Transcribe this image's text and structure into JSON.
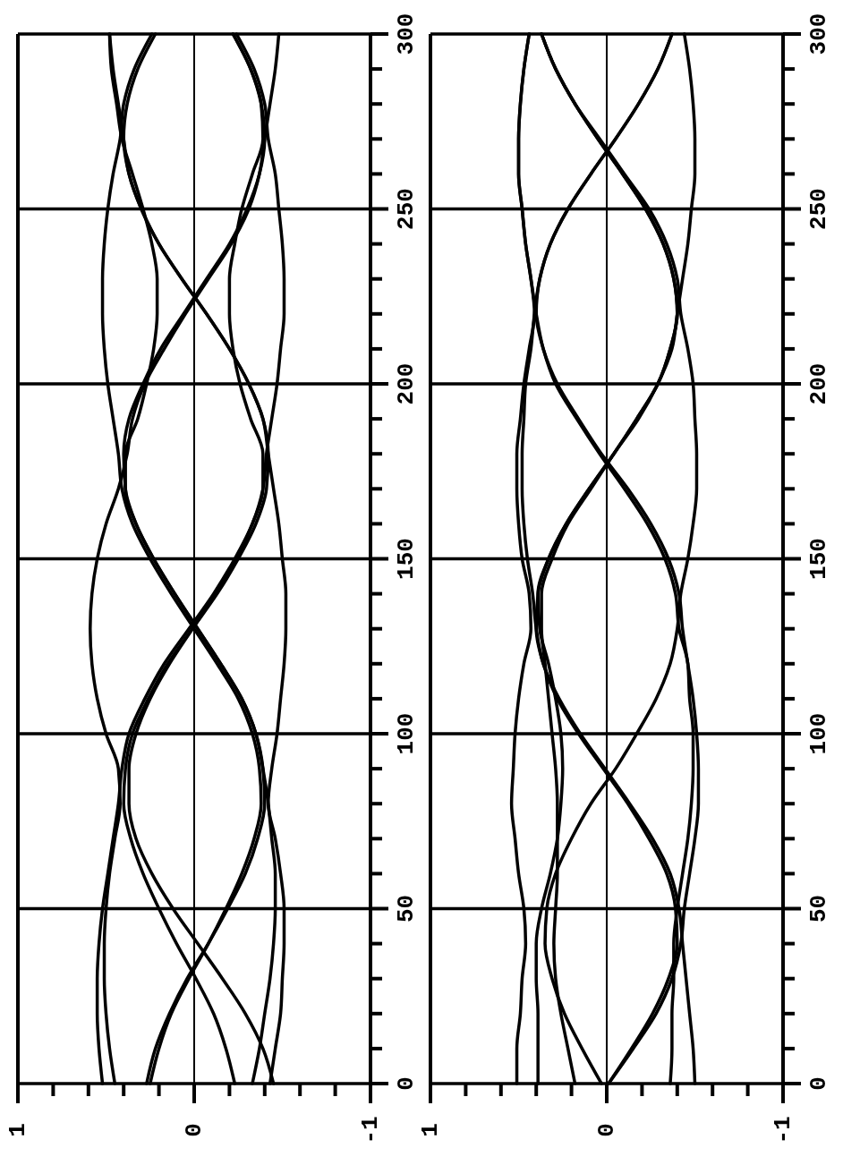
{
  "chart_data": [
    {
      "type": "line",
      "xlim": [
        1,
        -1
      ],
      "ylim": [
        0,
        300
      ],
      "yticks": [
        0,
        {
          "value": 10,
          "label": null
        },
        {
          "value": 20,
          "label": null
        },
        {
          "value": 30,
          "label": null
        },
        {
          "value": 40,
          "label": null
        },
        50,
        {
          "value": 60,
          "label": null
        },
        {
          "value": 70,
          "label": null
        },
        {
          "value": 80,
          "label": null
        },
        {
          "value": 90,
          "label": null
        },
        100,
        {
          "value": 110,
          "label": null
        },
        {
          "value": 120,
          "label": null
        },
        {
          "value": 130,
          "label": null
        },
        {
          "value": 140,
          "label": null
        },
        150,
        {
          "value": 160,
          "label": null
        },
        {
          "value": 170,
          "label": null
        },
        {
          "value": 180,
          "label": null
        },
        {
          "value": 190,
          "label": null
        },
        200,
        {
          "value": 210,
          "label": null
        },
        {
          "value": 220,
          "label": null
        },
        {
          "value": 230,
          "label": null
        },
        {
          "value": 240,
          "label": null
        },
        250,
        {
          "value": 260,
          "label": null
        },
        {
          "value": 270,
          "label": null
        },
        {
          "value": 280,
          "label": null
        },
        {
          "value": 290,
          "label": null
        },
        300
      ],
      "xticks": [
        1,
        {
          "value": 0.8,
          "label": null
        },
        {
          "value": 0.6,
          "label": null
        },
        {
          "value": 0.4,
          "label": null
        },
        {
          "value": 0.2,
          "label": null
        },
        0,
        {
          "value": -0.2,
          "label": null
        },
        {
          "value": -0.4,
          "label": null
        },
        {
          "value": -0.6,
          "label": null
        },
        {
          "value": -0.8,
          "label": null
        },
        -1
      ],
      "grid": true,
      "series": [
        {
          "color": "#000000",
          "values": [
            0,
            10,
            20,
            30,
            40,
            50,
            60,
            70,
            80,
            90,
            100,
            110,
            120,
            130,
            140,
            150,
            160,
            170,
            180,
            190,
            200,
            210,
            220,
            230,
            240,
            250,
            260,
            270,
            280,
            290,
            300
          ],
          "x": [
            0.27,
            0.22,
            0.14,
            0.04,
            -0.08,
            -0.19,
            -0.29,
            -0.36,
            -0.4,
            -0.39,
            -0.35,
            -0.27,
            -0.15,
            -0.02,
            0.11,
            0.23,
            0.33,
            0.39,
            0.4,
            0.37,
            0.29,
            0.19,
            0.06,
            -0.07,
            -0.2,
            -0.3,
            -0.37,
            -0.4,
            -0.38,
            -0.32,
            -0.22
          ]
        },
        {
          "color": "#000000",
          "values": [
            0,
            10,
            20,
            30,
            40,
            50,
            60,
            70,
            80,
            90,
            100,
            110,
            120,
            130,
            140,
            150,
            160,
            170,
            180,
            190,
            200,
            210,
            220,
            230,
            240,
            250,
            260,
            270,
            280,
            290,
            300
          ],
          "x": [
            0.25,
            0.2,
            0.13,
            0.03,
            -0.08,
            -0.18,
            -0.27,
            -0.34,
            -0.38,
            -0.37,
            -0.33,
            -0.25,
            -0.13,
            0.0,
            0.13,
            0.25,
            0.35,
            0.41,
            0.43,
            0.46,
            0.49,
            0.51,
            0.52,
            0.52,
            0.51,
            0.49,
            0.46,
            0.42,
            0.4,
            0.34,
            0.24
          ]
        },
        {
          "color": "#000000",
          "values": [
            0,
            10,
            20,
            30,
            40,
            50,
            60,
            70,
            80,
            90,
            100,
            110,
            120,
            130,
            140,
            150,
            160,
            170,
            180,
            190,
            200,
            210,
            220,
            230,
            240,
            250,
            260,
            270,
            280,
            290,
            300
          ],
          "x": [
            -0.23,
            -0.18,
            -0.11,
            -0.01,
            0.1,
            0.2,
            0.29,
            0.36,
            0.4,
            0.39,
            0.35,
            0.26,
            0.15,
            0.01,
            -0.13,
            -0.25,
            -0.35,
            -0.41,
            -0.42,
            -0.39,
            -0.31,
            -0.2,
            -0.07,
            0.07,
            0.2,
            0.3,
            0.37,
            0.4,
            0.38,
            0.32,
            0.22
          ]
        },
        {
          "color": "#000000",
          "values": [
            0,
            10,
            20,
            30,
            40,
            50,
            60,
            70,
            80,
            90,
            100,
            110,
            120,
            130,
            140,
            150,
            160,
            170,
            180,
            190,
            200,
            210,
            220,
            230,
            240,
            250,
            260,
            270,
            280,
            290,
            300
          ],
          "x": [
            0.52,
            0.54,
            0.55,
            0.55,
            0.54,
            0.52,
            0.49,
            0.46,
            0.43,
            0.41,
            0.37,
            0.28,
            0.17,
            0.03,
            -0.11,
            -0.23,
            -0.33,
            -0.39,
            -0.41,
            -0.44,
            -0.47,
            -0.49,
            -0.51,
            -0.51,
            -0.5,
            -0.48,
            -0.46,
            -0.42,
            -0.4,
            -0.34,
            -0.24
          ]
        },
        {
          "color": "#000000",
          "values": [
            0,
            10,
            20,
            30,
            40,
            50,
            60,
            70,
            80,
            90,
            100,
            110,
            120,
            130,
            140,
            150,
            160,
            170,
            180,
            190,
            200,
            210,
            220,
            230,
            240,
            250,
            260,
            270,
            280,
            290,
            300
          ],
          "x": [
            0.45,
            0.48,
            0.5,
            0.51,
            0.51,
            0.5,
            0.48,
            0.45,
            0.42,
            0.43,
            0.5,
            0.55,
            0.58,
            0.59,
            0.58,
            0.55,
            0.5,
            0.43,
            0.38,
            0.35,
            0.28,
            0.17,
            0.05,
            -0.08,
            -0.21,
            -0.31,
            -0.37,
            -0.4,
            -0.43,
            -0.46,
            -0.48
          ]
        },
        {
          "color": "#000000",
          "values": [
            0,
            10,
            20,
            30,
            40,
            50,
            60,
            70,
            80,
            90,
            100,
            110,
            120,
            130,
            140,
            150,
            160,
            170,
            180,
            190,
            200,
            210,
            220,
            230,
            240,
            250,
            260,
            270,
            280,
            290,
            300
          ],
          "x": [
            -0.33,
            -0.37,
            -0.4,
            -0.43,
            -0.45,
            -0.46,
            -0.46,
            -0.44,
            -0.42,
            -0.39,
            -0.35,
            -0.27,
            -0.15,
            -0.02,
            0.11,
            0.23,
            0.33,
            0.39,
            0.39,
            0.32,
            0.27,
            0.23,
            0.21,
            0.21,
            0.24,
            0.29,
            0.35,
            0.41,
            0.44,
            0.47,
            0.48
          ]
        },
        {
          "color": "#000000",
          "values": [
            0,
            10,
            20,
            30,
            40,
            50,
            60,
            70,
            80,
            90,
            100,
            110,
            120,
            130,
            140,
            150,
            160,
            170,
            180,
            190,
            200,
            210,
            220,
            230,
            240,
            250,
            260,
            270,
            280,
            290,
            300
          ],
          "x": [
            -0.43,
            -0.46,
            -0.49,
            -0.5,
            -0.51,
            -0.51,
            -0.49,
            -0.46,
            -0.42,
            -0.44,
            -0.47,
            -0.49,
            -0.51,
            -0.52,
            -0.52,
            -0.5,
            -0.48,
            -0.45,
            -0.42,
            -0.39,
            -0.31,
            -0.2,
            -0.07,
            0.07,
            0.2,
            0.3,
            0.37,
            0.4,
            0.43,
            0.46,
            0.48
          ]
        },
        {
          "color": "#000000",
          "values": [
            0,
            10,
            20,
            30,
            40,
            50,
            60,
            70,
            80,
            90,
            100,
            110,
            120,
            130,
            140,
            150,
            160,
            170,
            180,
            190,
            200,
            210,
            220,
            230,
            240,
            250,
            260,
            270,
            280,
            290,
            300
          ],
          "x": [
            -0.45,
            -0.39,
            -0.29,
            -0.16,
            -0.02,
            0.12,
            0.24,
            0.33,
            0.37,
            0.37,
            0.33,
            0.25,
            0.14,
            0.01,
            -0.12,
            -0.24,
            -0.33,
            -0.39,
            -0.39,
            -0.32,
            -0.26,
            -0.22,
            -0.2,
            -0.2,
            -0.23,
            -0.27,
            -0.33,
            -0.39,
            -0.38,
            -0.32,
            -0.22
          ]
        }
      ]
    },
    {
      "type": "line",
      "xlim": [
        1,
        -1
      ],
      "ylim": [
        0,
        300
      ],
      "yticks": [
        0,
        {
          "value": 10,
          "label": null
        },
        {
          "value": 20,
          "label": null
        },
        {
          "value": 30,
          "label": null
        },
        {
          "value": 40,
          "label": null
        },
        50,
        {
          "value": 60,
          "label": null
        },
        {
          "value": 70,
          "label": null
        },
        {
          "value": 80,
          "label": null
        },
        {
          "value": 90,
          "label": null
        },
        100,
        {
          "value": 110,
          "label": null
        },
        {
          "value": 120,
          "label": null
        },
        {
          "value": 130,
          "label": null
        },
        {
          "value": 140,
          "label": null
        },
        150,
        {
          "value": 160,
          "label": null
        },
        {
          "value": 170,
          "label": null
        },
        {
          "value": 180,
          "label": null
        },
        {
          "value": 190,
          "label": null
        },
        200,
        {
          "value": 210,
          "label": null
        },
        {
          "value": 220,
          "label": null
        },
        {
          "value": 230,
          "label": null
        },
        {
          "value": 240,
          "label": null
        },
        250,
        {
          "value": 260,
          "label": null
        },
        {
          "value": 270,
          "label": null
        },
        {
          "value": 280,
          "label": null
        },
        {
          "value": 290,
          "label": null
        },
        300
      ],
      "xticks": [
        1,
        {
          "value": 0.8,
          "label": null
        },
        {
          "value": 0.6,
          "label": null
        },
        {
          "value": 0.4,
          "label": null
        },
        {
          "value": 0.2,
          "label": null
        },
        0,
        {
          "value": -0.2,
          "label": null
        },
        {
          "value": -0.4,
          "label": null
        },
        {
          "value": -0.6,
          "label": null
        },
        {
          "value": -0.8,
          "label": null
        },
        -1
      ],
      "grid": true,
      "series": [
        {
          "color": "#000000",
          "values": [
            0,
            10,
            20,
            30,
            40,
            50,
            60,
            70,
            80,
            90,
            100,
            110,
            120,
            130,
            140,
            150,
            160,
            170,
            180,
            190,
            200,
            210,
            220,
            230,
            240,
            250,
            260,
            270,
            280,
            290,
            300
          ],
          "x": [
            -0.01,
            -0.14,
            -0.26,
            -0.35,
            -0.4,
            -0.39,
            -0.34,
            -0.24,
            -0.12,
            0.02,
            0.16,
            0.28,
            0.36,
            0.4,
            0.39,
            0.33,
            0.23,
            0.1,
            -0.04,
            -0.17,
            -0.29,
            -0.36,
            -0.4,
            -0.38,
            -0.32,
            -0.22,
            -0.09,
            0.05,
            0.18,
            0.29,
            0.37
          ]
        },
        {
          "color": "#000000",
          "values": [
            0,
            10,
            20,
            30,
            40,
            50,
            60,
            70,
            80,
            90,
            100,
            110,
            120,
            130,
            140,
            150,
            160,
            170,
            180,
            190,
            200,
            210,
            220,
            230,
            240,
            250,
            260,
            270,
            280,
            290,
            300
          ],
          "x": [
            -0.01,
            -0.15,
            -0.28,
            -0.37,
            -0.42,
            -0.44,
            -0.47,
            -0.5,
            -0.52,
            -0.52,
            -0.51,
            -0.49,
            -0.46,
            -0.43,
            -0.41,
            -0.35,
            -0.25,
            -0.12,
            0.03,
            0.16,
            0.28,
            0.36,
            0.4,
            0.38,
            0.32,
            0.22,
            0.09,
            -0.05,
            -0.18,
            -0.29,
            -0.37
          ]
        },
        {
          "color": "#000000",
          "values": [
            0,
            10,
            20,
            30,
            40,
            50,
            60,
            70,
            80,
            90,
            100,
            110,
            120,
            130,
            140,
            150,
            160,
            170,
            180,
            190,
            200,
            210,
            220,
            230,
            240,
            250,
            260,
            270,
            280,
            290,
            300
          ],
          "x": [
            0.51,
            0.51,
            0.49,
            0.48,
            0.46,
            0.47,
            0.5,
            0.52,
            0.54,
            0.53,
            0.52,
            0.5,
            0.47,
            0.43,
            0.44,
            0.48,
            0.5,
            0.51,
            0.51,
            0.49,
            0.47,
            0.44,
            0.41,
            0.43,
            0.46,
            0.48,
            0.5,
            0.5,
            0.49,
            0.47,
            0.44
          ]
        },
        {
          "color": "#000000",
          "values": [
            0,
            10,
            20,
            30,
            40,
            50,
            60,
            70,
            80,
            90,
            100,
            110,
            120,
            130,
            140,
            150,
            160,
            170,
            180,
            190,
            200,
            210,
            220,
            230,
            240,
            250,
            260,
            270,
            280,
            290,
            300
          ],
          "x": [
            -0.5,
            -0.49,
            -0.47,
            -0.45,
            -0.43,
            -0.41,
            -0.36,
            -0.26,
            -0.13,
            0.01,
            0.15,
            0.27,
            0.36,
            0.4,
            0.42,
            0.45,
            0.47,
            0.48,
            0.48,
            0.47,
            0.46,
            0.43,
            0.41,
            0.38,
            0.32,
            0.22,
            0.09,
            -0.05,
            -0.18,
            -0.29,
            -0.37
          ]
        },
        {
          "color": "#000000",
          "values": [
            0,
            10,
            20,
            30,
            40,
            50,
            60,
            70,
            80,
            90,
            100,
            110,
            120,
            130,
            140,
            150,
            160,
            170,
            180,
            190,
            200,
            210,
            220,
            230,
            240,
            250,
            260,
            270,
            280,
            290,
            300
          ],
          "x": [
            0.03,
            0.14,
            0.24,
            0.31,
            0.35,
            0.34,
            0.29,
            0.2,
            0.09,
            -0.05,
            -0.17,
            -0.28,
            -0.36,
            -0.4,
            -0.42,
            -0.46,
            -0.49,
            -0.51,
            -0.51,
            -0.5,
            -0.49,
            -0.46,
            -0.42,
            -0.4,
            -0.34,
            -0.24,
            -0.1,
            0.04,
            0.18,
            0.29,
            0.37
          ]
        },
        {
          "color": "#000000",
          "values": [
            0,
            10,
            20,
            30,
            40,
            50,
            60,
            70,
            80,
            90,
            100,
            110,
            120,
            130,
            140,
            150,
            160,
            170,
            180,
            190,
            200,
            210,
            220,
            230,
            240,
            250,
            260,
            270,
            280,
            290,
            300
          ],
          "x": [
            0.18,
            0.22,
            0.26,
            0.29,
            0.3,
            0.29,
            0.28,
            0.28,
            0.28,
            0.29,
            0.31,
            0.33,
            0.35,
            0.37,
            0.37,
            0.31,
            0.22,
            0.09,
            -0.04,
            -0.18,
            -0.29,
            -0.37,
            -0.4,
            -0.43,
            -0.46,
            -0.48,
            -0.5,
            -0.5,
            -0.49,
            -0.47,
            -0.44
          ]
        },
        {
          "color": "#000000",
          "values": [
            0,
            10,
            20,
            30,
            40,
            50,
            60,
            70,
            80,
            90,
            100,
            110,
            120,
            130,
            140,
            150,
            160,
            170,
            180,
            190,
            200,
            210,
            220,
            230,
            240,
            250,
            260,
            270,
            280,
            290,
            300
          ],
          "x": [
            0.39,
            0.39,
            0.39,
            0.4,
            0.4,
            0.37,
            0.32,
            0.28,
            0.26,
            0.25,
            0.26,
            0.29,
            0.33,
            0.38,
            0.39,
            0.33,
            0.23,
            0.1,
            -0.04,
            -0.17,
            -0.29,
            -0.36,
            -0.4,
            -0.38,
            -0.32,
            -0.22,
            -0.09,
            0.05,
            0.18,
            0.29,
            0.37
          ]
        },
        {
          "color": "#000000",
          "values": [
            0,
            10,
            20,
            30,
            40,
            50,
            60,
            70,
            80,
            90,
            100,
            110,
            120,
            130,
            140,
            150,
            160,
            170,
            180,
            190,
            200,
            210,
            220,
            230,
            240,
            250,
            260,
            270,
            280,
            290,
            300
          ],
          "x": [
            -0.36,
            -0.37,
            -0.37,
            -0.38,
            -0.38,
            -0.4,
            -0.43,
            -0.46,
            -0.48,
            -0.49,
            -0.49,
            -0.47,
            -0.46,
            -0.41,
            -0.39,
            -0.33,
            -0.23,
            -0.1,
            0.04,
            0.17,
            0.29,
            0.36,
            0.4,
            0.43,
            0.46,
            0.48,
            0.5,
            0.5,
            0.49,
            0.47,
            0.44
          ]
        }
      ]
    }
  ]
}
